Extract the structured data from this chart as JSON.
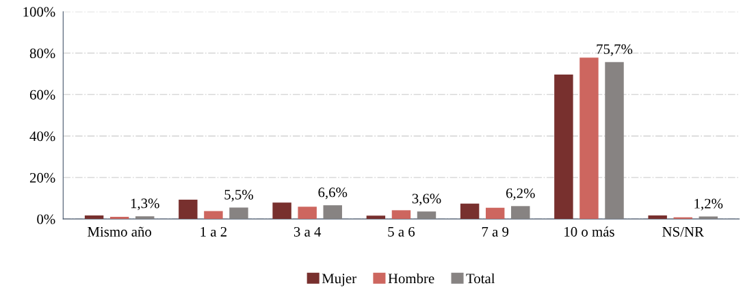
{
  "chart_data": {
    "type": "bar",
    "categories": [
      "Mismo año",
      "1 a 2",
      "3 a 4",
      "5 a 6",
      "7 a 9",
      "10 o más",
      "NS/NR"
    ],
    "series": [
      {
        "name": "Mujer",
        "color": "#78302e",
        "values": [
          1.7,
          9.3,
          7.9,
          1.6,
          7.4,
          69.6,
          1.7
        ]
      },
      {
        "name": "Hombre",
        "color": "#cd665f",
        "values": [
          1.0,
          3.8,
          5.9,
          4.2,
          5.4,
          77.8,
          0.8
        ]
      },
      {
        "name": "Total",
        "color": "#878382",
        "values": [
          1.3,
          5.5,
          6.6,
          3.6,
          6.2,
          75.7,
          1.2
        ],
        "value_labels": [
          "1,3%",
          "5,5%",
          "6,6%",
          "3,6%",
          "6,2%",
          "75,7%",
          "1,2%"
        ]
      }
    ],
    "ylim": [
      0,
      100
    ],
    "yticks": [
      {
        "value": 0,
        "label": "0%"
      },
      {
        "value": 20,
        "label": "20%"
      },
      {
        "value": 40,
        "label": "40%"
      },
      {
        "value": 60,
        "label": "60%"
      },
      {
        "value": 80,
        "label": "80%"
      },
      {
        "value": 100,
        "label": "100%"
      }
    ],
    "grid": "y",
    "legend": "bottom"
  }
}
